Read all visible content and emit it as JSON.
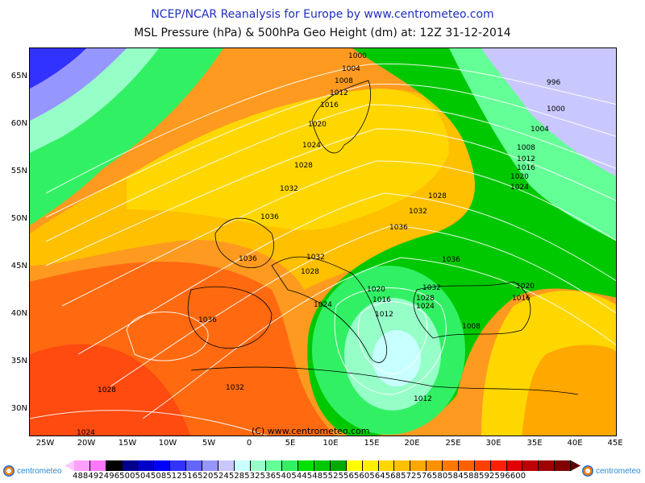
{
  "header": {
    "title_line1": "NCEP/NCAR Reanalysis for Europe by www.centrometeo.com",
    "title_line2": "MSL Pressure (hPa) & 500hPa Geo Height (dm) at: 12Z 31-12-2014"
  },
  "map": {
    "copyright": "(C) www.centrometeo.com",
    "lat_labels": [
      "65N",
      "60N",
      "55N",
      "50N",
      "45N",
      "40N",
      "35N",
      "30N"
    ],
    "lon_labels": [
      "25W",
      "20W",
      "15W",
      "10W",
      "5W",
      "0",
      "5E",
      "10E",
      "15E",
      "20E",
      "25E",
      "30E",
      "35E",
      "40E",
      "45E"
    ],
    "isobar_labels": [
      "1000",
      "1004",
      "1008",
      "1012",
      "1016",
      "1020",
      "1024",
      "1028",
      "1032",
      "1036",
      "1036",
      "1032",
      "1028",
      "1024",
      "1032",
      "1036",
      "1028",
      "1032",
      "1032",
      "1028",
      "1024",
      "1020",
      "1016",
      "1012",
      "1036",
      "1032",
      "1024",
      "1012",
      "1008",
      "1016",
      "1020",
      "1024",
      "1020",
      "1016",
      "1012",
      "1008",
      "1004",
      "1000",
      "996",
      "1036",
      "1028",
      "1024",
      "1032",
      "1012"
    ]
  },
  "colorbar": {
    "labels": "488492496500504508512516520524528532536540544548552556560564568572576580584588592596600",
    "colors": [
      "#ffc8ff",
      "#ffa0ff",
      "#ff78ff",
      "#000000",
      "#00008c",
      "#0000c8",
      "#0000ff",
      "#3232ff",
      "#6464ff",
      "#9696ff",
      "#c8c8ff",
      "#c8ffff",
      "#96ffc8",
      "#64ff96",
      "#32f064",
      "#00e000",
      "#00c800",
      "#00aa00",
      "#ffff00",
      "#ffee00",
      "#ffd700",
      "#ffc000",
      "#ffa800",
      "#ff9000",
      "#ff7800",
      "#ff6000",
      "#ff4000",
      "#ff2000",
      "#e00000",
      "#c00000",
      "#a00000",
      "#800000",
      "#600000"
    ]
  },
  "logo": {
    "text": "centrometeo"
  }
}
